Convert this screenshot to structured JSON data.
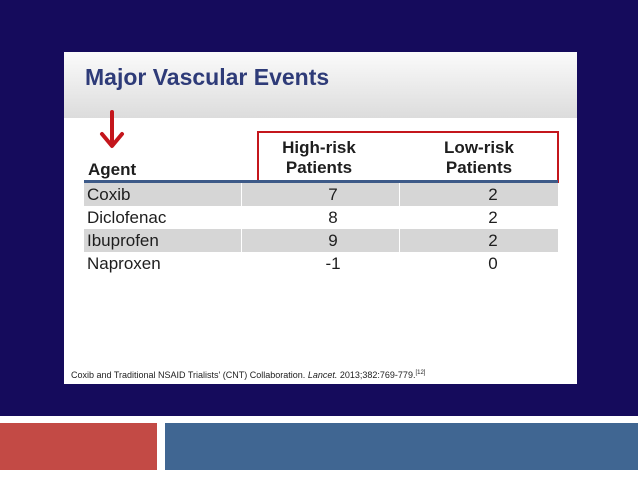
{
  "slide": {
    "title": "Major Vascular Events",
    "columns": {
      "agent": "Agent",
      "high_risk_line1": "High-risk",
      "high_risk_line2": "Patients",
      "low_risk_line1": "Low-risk",
      "low_risk_line2": "Patients"
    },
    "rows": [
      {
        "agent": "Coxib",
        "high": "7",
        "low": "2"
      },
      {
        "agent": "Diclofenac",
        "high": "8",
        "low": "2"
      },
      {
        "agent": "Ibuprofen",
        "high": "9",
        "low": "2"
      },
      {
        "agent": "Naproxen",
        "high": "-1",
        "low": "0"
      }
    ],
    "citation": {
      "authors": "Coxib and Traditional NSAID Trialists' (CNT) Collaboration.",
      "journal": "Lancet.",
      "details": "2013;382:769-779.",
      "ref": "[12]"
    }
  },
  "colors": {
    "background": "#150b5c",
    "title": "#2e3b78",
    "highlight_box": "#c4161c",
    "arrow": "#c4161c",
    "footer_red": "#c34a45",
    "footer_blue": "#406692"
  },
  "icons": {
    "arrow": "down-arrow-icon"
  }
}
